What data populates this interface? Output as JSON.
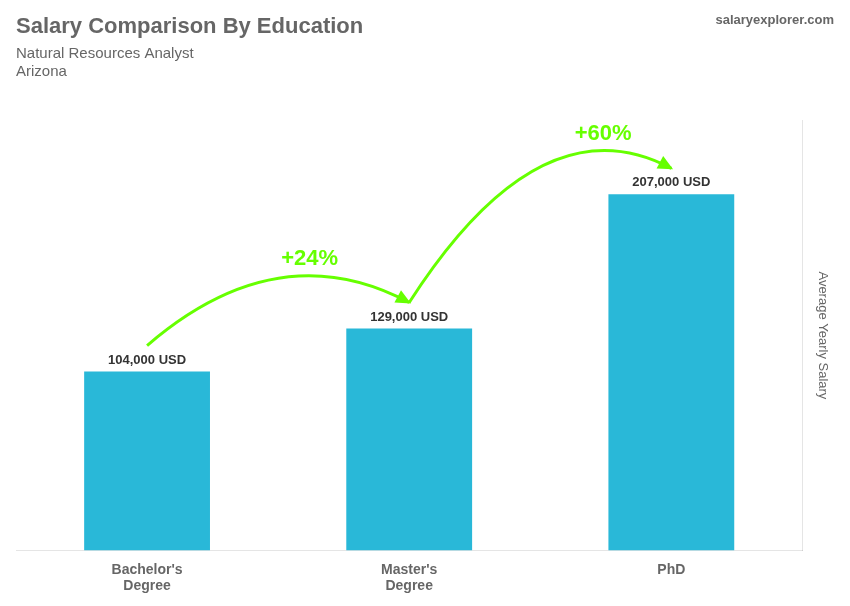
{
  "chart_data": {
    "type": "bar",
    "title": "Salary Comparison By Education",
    "subtitle": "Natural Resources Analyst",
    "location": "Arizona",
    "watermark": [
      "salary",
      "explorer",
      ".com"
    ],
    "categories": [
      "Bachelor's\nDegree",
      "Master's\nDegree",
      "PhD"
    ],
    "values": [
      104000,
      129000,
      207000
    ],
    "value_labels": [
      "104,000 USD",
      "129,000 USD",
      "207,000 USD"
    ],
    "data_labels": true,
    "color": "#29b8d8",
    "annotations": [
      {
        "text": "+24%",
        "from": "Bachelor's\nDegree",
        "to": "Master's\nDegree",
        "color": "#66ff00"
      },
      {
        "text": "+60%",
        "from": "Master's\nDegree",
        "to": "PhD",
        "color": "#66ff00"
      }
    ],
    "ylabel": "Average Yearly Salary",
    "ylim": [
      0,
      250000
    ],
    "tick_labels": "x",
    "grid": false
  }
}
